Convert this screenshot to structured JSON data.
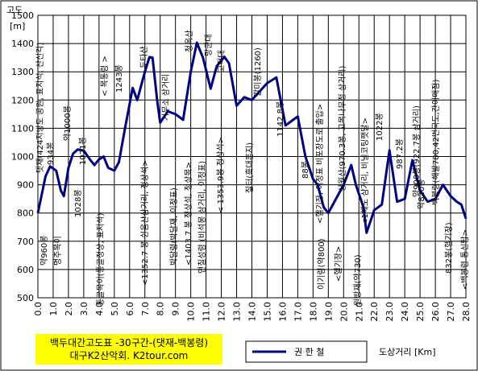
{
  "chart_data": {
    "type": "line",
    "y_label": "고도",
    "y_unit": "[m]",
    "x_label": "도상거리 [Km]",
    "title": "백두대간고도표 -30구간-(댓재-백봉령)",
    "subtitle": "대구K2산악회. K2tour.com",
    "x": [
      0,
      0.5,
      0.8,
      1.2,
      1.5,
      1.7,
      2.0,
      2.3,
      2.6,
      3.0,
      3.4,
      3.7,
      4.0,
      4.3,
      4.6,
      5.0,
      5.3,
      5.7,
      6.2,
      6.5,
      7.0,
      7.3,
      7.5,
      7.8,
      8.0,
      8.5,
      9.0,
      9.5,
      10.0,
      10.4,
      10.8,
      11.3,
      11.7,
      12.2,
      12.5,
      13.0,
      13.5,
      14.0,
      14.5,
      15.0,
      15.6,
      16.2,
      17.0,
      17.5,
      18.0,
      18.3,
      18.7,
      19.0,
      19.5,
      20.0,
      20.5,
      20.8,
      21.3,
      21.5,
      22.0,
      22.5,
      23.0,
      23.5,
      24.0,
      24.5,
      25.0,
      25.5,
      26.0,
      26.5,
      27.0,
      27.4,
      27.7,
      28.0
    ],
    "series": [
      {
        "name": "권 한 철",
        "color": "#000080",
        "values": [
          800,
          930,
          965,
          950,
          880,
          860,
          960,
          1010,
          1025,
          1021,
          990,
          970,
          990,
          1000,
          960,
          950,
          980,
          1100,
          1243,
          1200,
          1300,
          1352,
          1350,
          1200,
          1120,
          1160,
          1150,
          1130,
          1300,
          1403,
          1350,
          1240,
          1320,
          1353,
          1330,
          1180,
          1210,
          1200,
          1230,
          1260,
          1280,
          1110,
          1142,
          1000,
          920,
          900,
          820,
          800,
          850,
          900,
          970,
          900,
          820,
          730,
          810,
          830,
          1022,
          840,
          850,
          987,
          880,
          840,
          850,
          900,
          860,
          840,
          830,
          780
        ]
      }
    ],
    "xlim": [
      0,
      28
    ],
    "ylim": [
      500,
      1500
    ],
    "xticks": [
      {
        "value": 0,
        "label": "0.0"
      },
      {
        "value": 1,
        "label": "1.0"
      },
      {
        "value": 2,
        "label": "2.0"
      },
      {
        "value": 3,
        "label": "3.0"
      },
      {
        "value": 4,
        "label": "4.0"
      },
      {
        "value": 5,
        "label": "5.0"
      },
      {
        "value": 6,
        "label": "6.0"
      },
      {
        "value": 7,
        "label": "7.0"
      },
      {
        "value": 8,
        "label": "8.0"
      },
      {
        "value": 9,
        "label": "9.0"
      },
      {
        "value": 10,
        "label": "10.0"
      },
      {
        "value": 11,
        "label": "11.0"
      },
      {
        "value": 12,
        "label": "12.0"
      },
      {
        "value": 13,
        "label": "13.0"
      },
      {
        "value": 14,
        "label": "14.0"
      },
      {
        "value": 15,
        "label": "15.0"
      },
      {
        "value": 16,
        "label": "16.0"
      },
      {
        "value": 17,
        "label": "17.0"
      },
      {
        "value": 18,
        "label": "18.0"
      },
      {
        "value": 19,
        "label": "19.0"
      },
      {
        "value": 20,
        "label": "20.0"
      },
      {
        "value": 21,
        "label": "21.0"
      },
      {
        "value": 22,
        "label": "22.0"
      },
      {
        "value": 23,
        "label": "23.0"
      },
      {
        "value": 24,
        "label": "24.0"
      },
      {
        "value": 25,
        "label": "25.0"
      },
      {
        "value": 26,
        "label": "26.0"
      },
      {
        "value": 27,
        "label": "27.0"
      },
      {
        "value": 28,
        "label": "28.0"
      }
    ],
    "yticks": [
      500,
      600,
      700,
      800,
      900,
      1000,
      1100,
      1200,
      1300,
      1400,
      1500
    ],
    "grid": true,
    "annotations": [
      "댓재(424지방도 공원, 표지석, 산신각)",
      "934봉",
      "약960봉",
      "명주목이",
      "약1000봉",
      "1028봉",
      "1021봉",
      "통골목이(통골정상, 표지석)",
      "< 목통령 >",
      "1243봉",
      "두타산",
      "<1352.7 봉 쉰움산삼거리, 정상석>",
      "거무소 삼거리",
      "박달령(박달재, 이정표)",
      "청옥산",
      "<1403.7 봉 정상석, 정상목>",
      "연칠성령 (비석몽 삼거리, 이정표)",
      "망군대",
      "고적대",
      "< 1353.9봉 정상석>",
      "질터(흑대혼지)",
      "갈미봉(1260)",
      "1142.8봉",
      "88봉",
      "이기령(약800)",
      "<헬기장, 이정표 비포장도로 출입>",
      "<헬기장>",
      "상월산(970.3봉, 고목나무정 삼거리)",
      "원방재(약730)",
      "<1해도 삼거리, 비닐코팅팻말>",
      "1022봉",
      "987.2봉",
      "약900봉(922.7봉 삼거리)",
      "약820봉",
      "백봉령(해발780,42번국도,간이매점)",
      "832봉(헬기장)",
      "<백봉령 통신탑>"
    ]
  }
}
